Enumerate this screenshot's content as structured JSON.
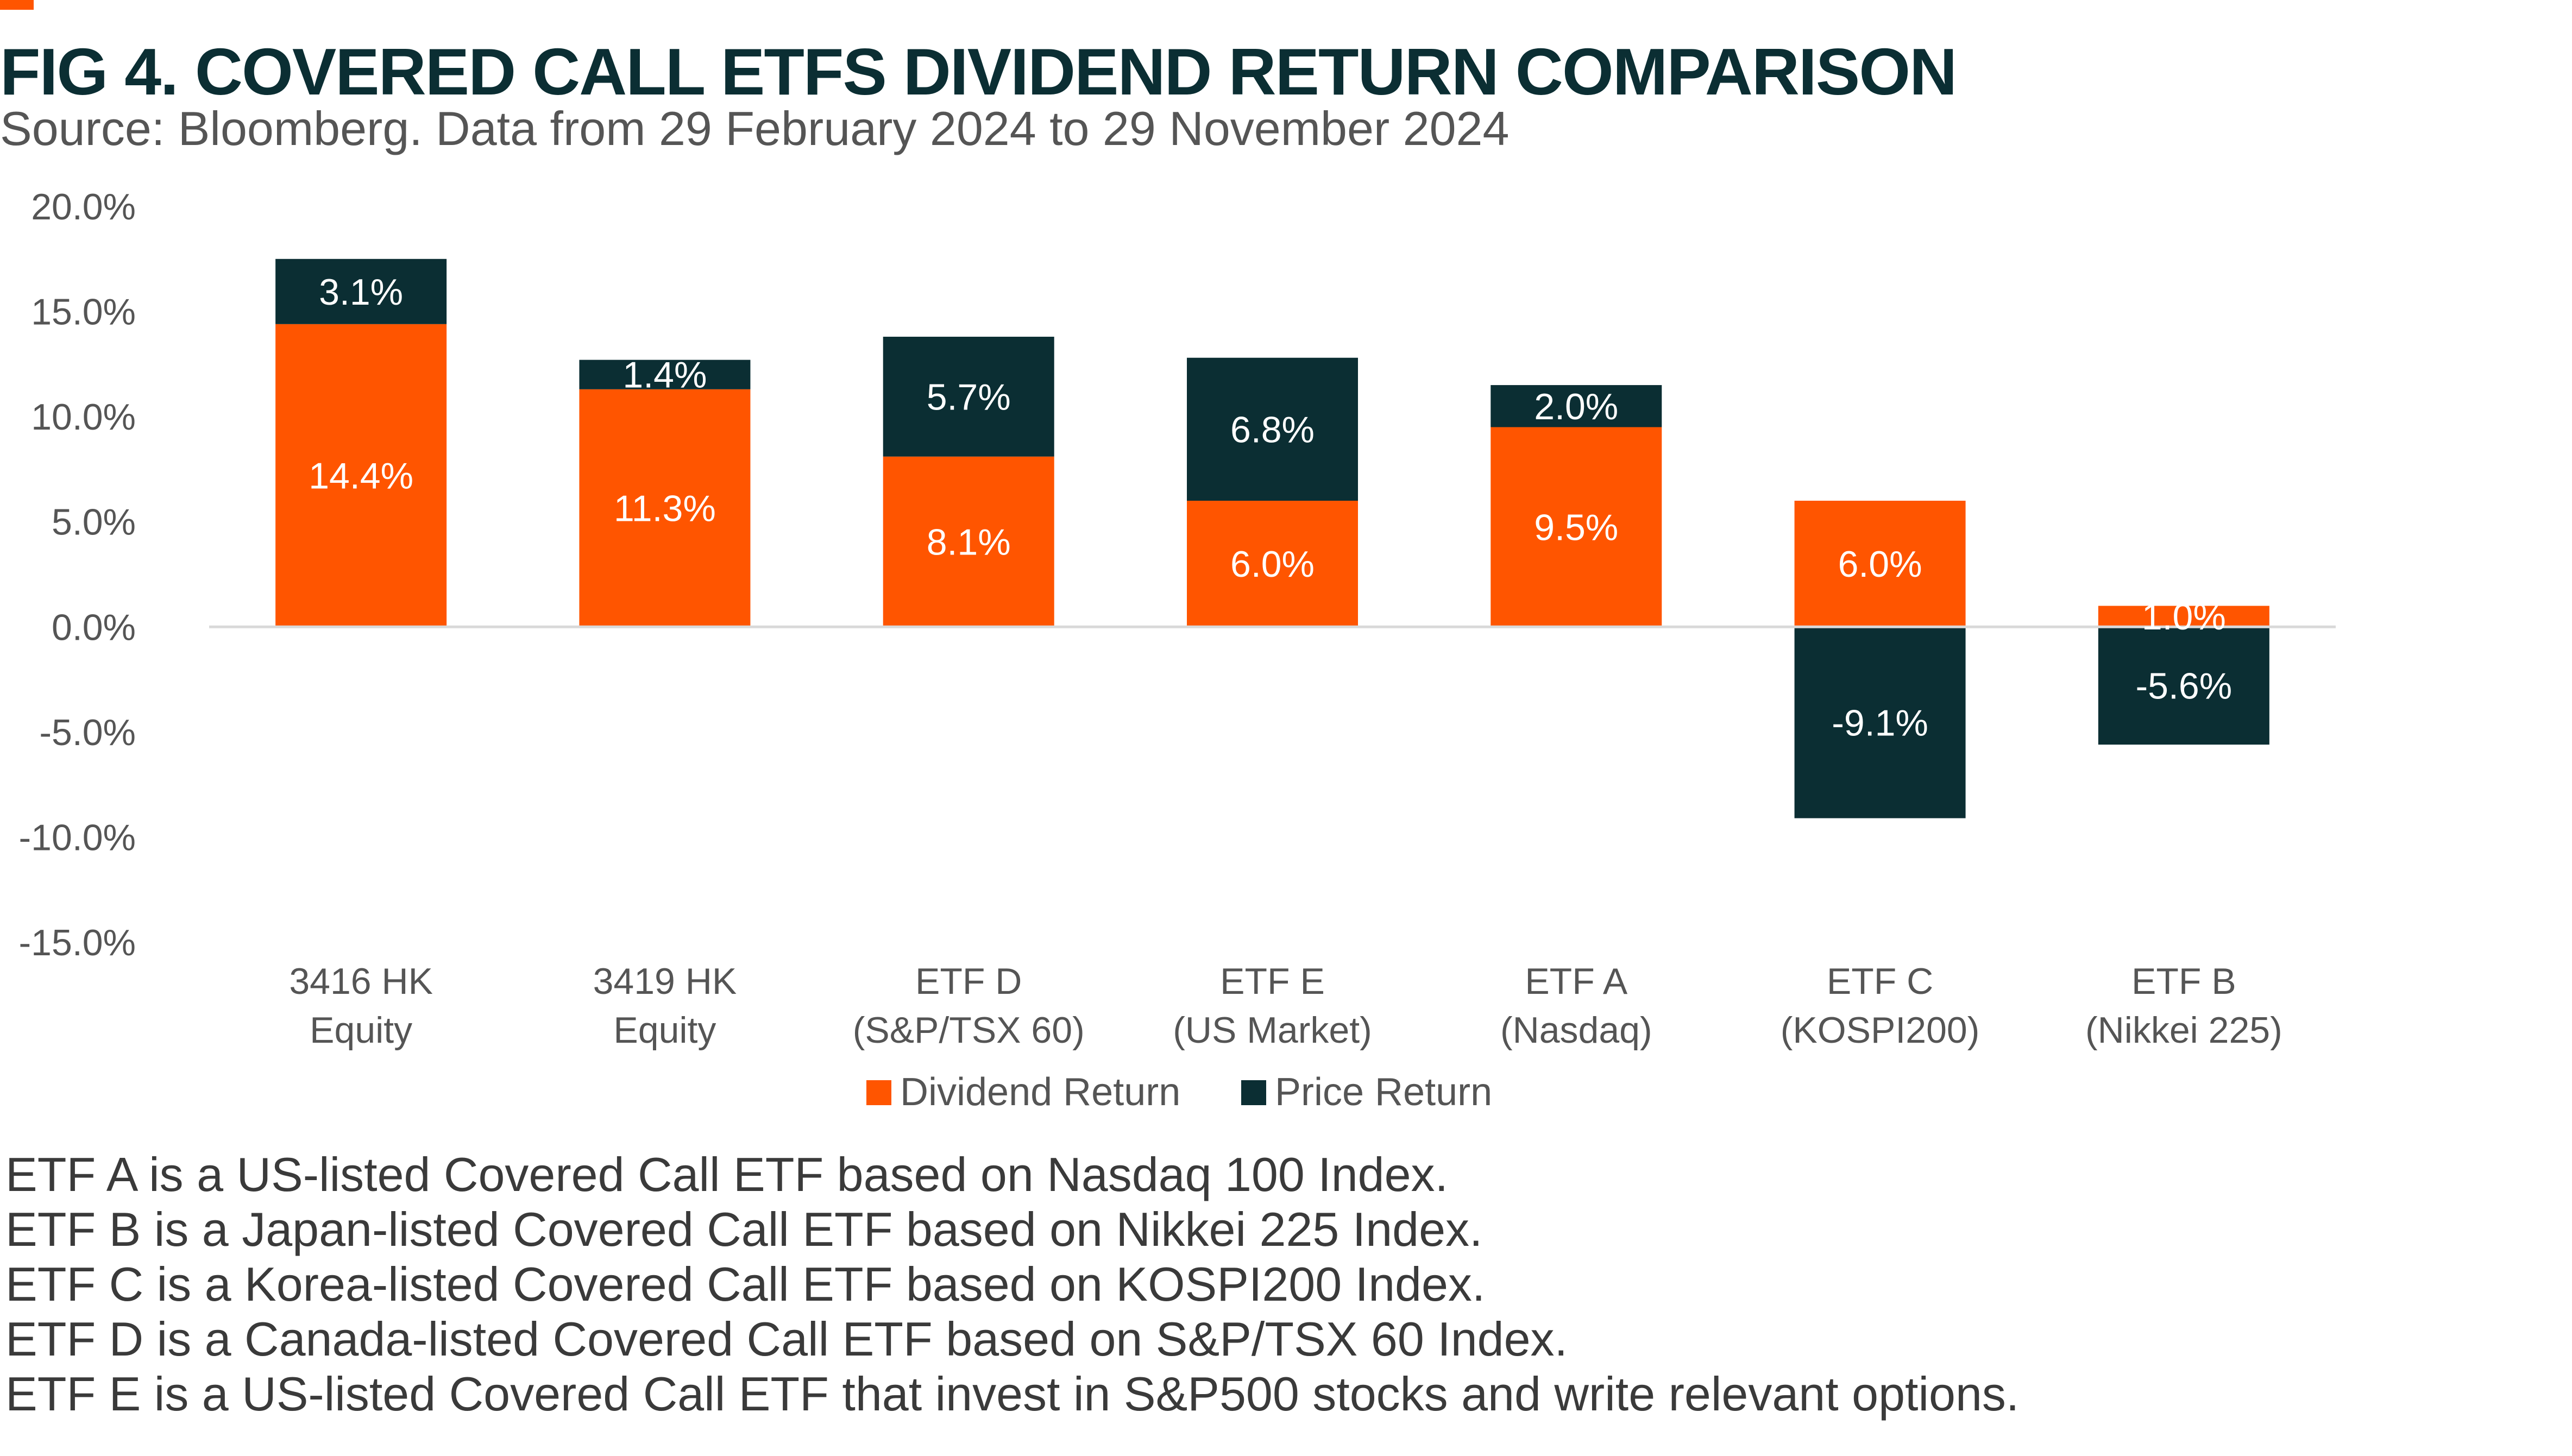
{
  "header": {
    "title": "FIG 4. COVERED CALL ETFS DIVIDEND RETURN COMPARISON",
    "subtitle": "Source: Bloomberg. Data from 29 February 2024 to 29 November 2024"
  },
  "colors": {
    "accent": "#FF5500",
    "dividend": "#FF5500",
    "price": "#0B2E33"
  },
  "chart_data": {
    "type": "bar",
    "stacked": true,
    "categories": [
      [
        "3416 HK",
        "Equity"
      ],
      [
        "3419 HK",
        "Equity"
      ],
      [
        "ETF D",
        "(S&P/TSX 60)"
      ],
      [
        "ETF E",
        "(US Market)"
      ],
      [
        "ETF A",
        "(Nasdaq)"
      ],
      [
        "ETF C",
        "(KOSPI200)"
      ],
      [
        "ETF B",
        "(Nikkei 225)"
      ]
    ],
    "series": [
      {
        "name": "Dividend Return",
        "color": "#FF5500",
        "values": [
          14.4,
          11.3,
          8.1,
          6.0,
          9.5,
          6.0,
          1.0
        ],
        "labels": [
          "14.4%",
          "11.3%",
          "8.1%",
          "6.0%",
          "9.5%",
          "6.0%",
          "1.0%"
        ]
      },
      {
        "name": "Price Return",
        "color": "#0B2E33",
        "values": [
          3.1,
          1.4,
          5.7,
          6.8,
          2.0,
          -9.1,
          -5.6
        ],
        "labels": [
          "3.1%",
          "1.4%",
          "5.7%",
          "6.8%",
          "2.0%",
          "-9.1%",
          "-5.6%"
        ]
      }
    ],
    "ylim": [
      -15,
      20
    ],
    "yticks": [
      20,
      15,
      10,
      5,
      0,
      -5,
      -10,
      -15
    ],
    "ytick_labels": [
      "20.0%",
      "15.0%",
      "10.0%",
      "5.0%",
      "0.0%",
      "-5.0%",
      "-10.0%",
      "-15.0%"
    ],
    "xlabel": "",
    "ylabel": "",
    "grid": false,
    "legend": "bottom"
  },
  "notes": [
    "ETF A is a US-listed Covered Call ETF based on Nasdaq 100 Index.",
    "ETF B is a Japan-listed Covered Call ETF based on Nikkei 225 Index.",
    "ETF C is a Korea-listed Covered Call ETF based on KOSPI200 Index.",
    "ETF D is a Canada-listed Covered Call ETF based on S&P/TSX 60 Index.",
    "ETF E is a US-listed Covered Call ETF that invest in S&P500 stocks and write relevant options."
  ]
}
